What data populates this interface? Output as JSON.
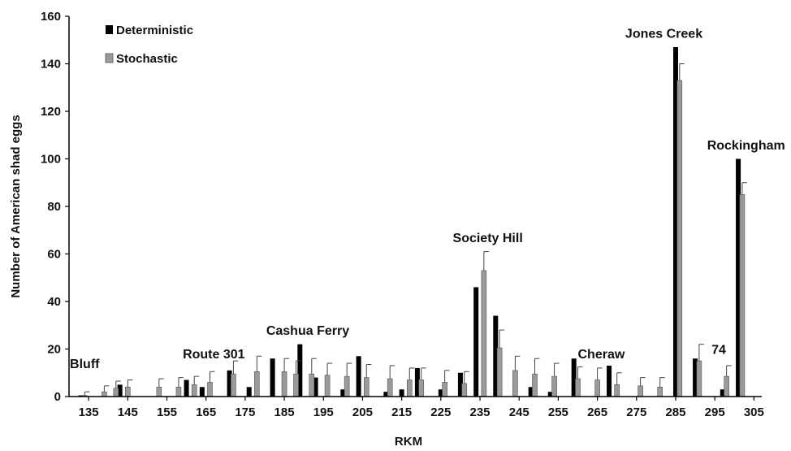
{
  "chart_data": {
    "type": "bar",
    "xlabel": "RKM",
    "ylabel": "Number of American shad eggs",
    "ylim": [
      0,
      160
    ],
    "yticks": [
      0,
      20,
      40,
      60,
      80,
      100,
      120,
      140,
      160
    ],
    "xticks": [
      135,
      145,
      155,
      165,
      175,
      185,
      195,
      205,
      215,
      225,
      235,
      245,
      255,
      265,
      275,
      285,
      295,
      305
    ],
    "xrange": [
      130,
      307
    ],
    "grid": false,
    "legend_position": "top-left",
    "series": [
      {
        "name": "Deterministic",
        "color": "#000000",
        "points": [
          {
            "x": 133,
            "y": 0.5
          },
          {
            "x": 143,
            "y": 5
          },
          {
            "x": 160,
            "y": 7
          },
          {
            "x": 164,
            "y": 4
          },
          {
            "x": 171,
            "y": 11
          },
          {
            "x": 176,
            "y": 4
          },
          {
            "x": 182,
            "y": 16
          },
          {
            "x": 189,
            "y": 22
          },
          {
            "x": 193,
            "y": 8
          },
          {
            "x": 200,
            "y": 3
          },
          {
            "x": 204,
            "y": 17
          },
          {
            "x": 211,
            "y": 2
          },
          {
            "x": 215,
            "y": 3
          },
          {
            "x": 219,
            "y": 12
          },
          {
            "x": 225,
            "y": 3
          },
          {
            "x": 230,
            "y": 10
          },
          {
            "x": 234,
            "y": 46
          },
          {
            "x": 239,
            "y": 34
          },
          {
            "x": 248,
            "y": 4
          },
          {
            "x": 253,
            "y": 2
          },
          {
            "x": 259,
            "y": 16
          },
          {
            "x": 268,
            "y": 13
          },
          {
            "x": 285,
            "y": 147
          },
          {
            "x": 290,
            "y": 16
          },
          {
            "x": 297,
            "y": 3
          },
          {
            "x": 301,
            "y": 100
          }
        ]
      },
      {
        "name": "Stochastic",
        "color": "#9a9a9a",
        "points": [
          {
            "x": 134,
            "y": 0.5,
            "err": 1.5
          },
          {
            "x": 139,
            "y": 2,
            "err": 2.5
          },
          {
            "x": 142,
            "y": 3.5,
            "err": 3
          },
          {
            "x": 145,
            "y": 4,
            "err": 3
          },
          {
            "x": 153,
            "y": 4,
            "err": 3.5
          },
          {
            "x": 158,
            "y": 4,
            "err": 4
          },
          {
            "x": 162,
            "y": 5,
            "err": 3.5
          },
          {
            "x": 166,
            "y": 6,
            "err": 4.5
          },
          {
            "x": 172,
            "y": 9.5,
            "err": 5.5
          },
          {
            "x": 178,
            "y": 10.5,
            "err": 6.5
          },
          {
            "x": 185,
            "y": 10.5,
            "err": 5.5
          },
          {
            "x": 188,
            "y": 9.5,
            "err": 5.5
          },
          {
            "x": 192,
            "y": 9.5,
            "err": 6.5
          },
          {
            "x": 196,
            "y": 9,
            "err": 5
          },
          {
            "x": 201,
            "y": 8.5,
            "err": 5.5
          },
          {
            "x": 206,
            "y": 8,
            "err": 5.5
          },
          {
            "x": 212,
            "y": 7.5,
            "err": 5.5
          },
          {
            "x": 217,
            "y": 7,
            "err": 5
          },
          {
            "x": 220,
            "y": 7,
            "err": 5
          },
          {
            "x": 226,
            "y": 6,
            "err": 5
          },
          {
            "x": 231,
            "y": 5.5,
            "err": 5
          },
          {
            "x": 236,
            "y": 53,
            "err": 8
          },
          {
            "x": 240,
            "y": 20.5,
            "err": 7.5
          },
          {
            "x": 244,
            "y": 11,
            "err": 6
          },
          {
            "x": 249,
            "y": 9.5,
            "err": 6.5
          },
          {
            "x": 254,
            "y": 8.5,
            "err": 5.5
          },
          {
            "x": 260,
            "y": 7.5,
            "err": 5
          },
          {
            "x": 265,
            "y": 7,
            "err": 5
          },
          {
            "x": 270,
            "y": 5,
            "err": 5
          },
          {
            "x": 276,
            "y": 4.5,
            "err": 3.5
          },
          {
            "x": 281,
            "y": 4,
            "err": 4
          },
          {
            "x": 286,
            "y": 133,
            "err": 7
          },
          {
            "x": 291,
            "y": 15,
            "err": 7
          },
          {
            "x": 298,
            "y": 8.5,
            "err": 4.5
          },
          {
            "x": 302,
            "y": 85,
            "err": 5
          }
        ]
      }
    ],
    "annotations": [
      {
        "text": "Bluff",
        "x": 134,
        "y": 12
      },
      {
        "text": "Route 301",
        "x": 167,
        "y": 16
      },
      {
        "text": "Cashua Ferry",
        "x": 191,
        "y": 26
      },
      {
        "text": "Society Hill",
        "x": 237,
        "y": 65
      },
      {
        "text": "Cheraw",
        "x": 266,
        "y": 16
      },
      {
        "text": "Jones Creek",
        "x": 282,
        "y": 151
      },
      {
        "text": "74",
        "x": 296,
        "y": 18
      },
      {
        "text": "Rockingham",
        "x": 303,
        "y": 104
      }
    ]
  }
}
